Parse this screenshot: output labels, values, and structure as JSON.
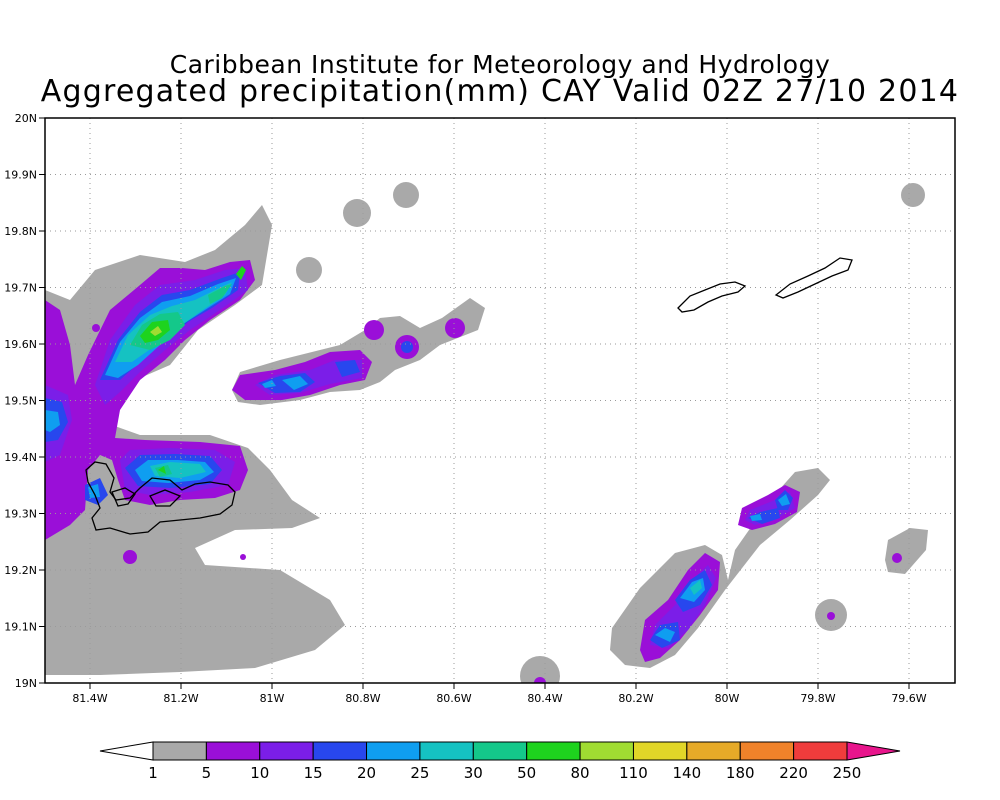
{
  "title": {
    "line1": "Caribbean Institute for Meteorology and Hydrology",
    "line2": "Aggregated precipitation(mm) CAY Valid 02Z 27/10 2014"
  },
  "map": {
    "lon_range": [
      -81.5,
      -79.5
    ],
    "lat_range": [
      19.0,
      20.0
    ],
    "grid": "dotted",
    "lon_ticks": [
      {
        "value": -81.4,
        "label": "81.4W"
      },
      {
        "value": -81.2,
        "label": "81.2W"
      },
      {
        "value": -81.0,
        "label": "81W"
      },
      {
        "value": -80.8,
        "label": "80.8W"
      },
      {
        "value": -80.6,
        "label": "80.6W"
      },
      {
        "value": -80.4,
        "label": "80.4W"
      },
      {
        "value": -80.2,
        "label": "80.2W"
      },
      {
        "value": -80.0,
        "label": "80W"
      },
      {
        "value": -79.8,
        "label": "79.8W"
      },
      {
        "value": -79.6,
        "label": "79.6W"
      }
    ],
    "lat_ticks": [
      {
        "value": 19.0,
        "label": "19N"
      },
      {
        "value": 19.1,
        "label": "19.1N"
      },
      {
        "value": 19.2,
        "label": "19.2N"
      },
      {
        "value": 19.3,
        "label": "19.3N"
      },
      {
        "value": 19.4,
        "label": "19.4N"
      },
      {
        "value": 19.5,
        "label": "19.5N"
      },
      {
        "value": 19.6,
        "label": "19.6N"
      },
      {
        "value": 19.7,
        "label": "19.7N"
      },
      {
        "value": 19.8,
        "label": "19.8N"
      },
      {
        "value": 19.9,
        "label": "19.9N"
      },
      {
        "value": 20.0,
        "label": "20N"
      }
    ]
  },
  "colorbar": {
    "low_color": "#ffffff",
    "high_color": "#e8158c",
    "levels": [
      "1",
      "5",
      "10",
      "15",
      "20",
      "25",
      "30",
      "50",
      "80",
      "110",
      "140",
      "180",
      "220",
      "250"
    ],
    "colors": [
      "#a9a9a9",
      "#9a0fd8",
      "#7b1ee8",
      "#2847ee",
      "#0f9ef0",
      "#15c2c2",
      "#14c88a",
      "#1ed31e",
      "#a0dc32",
      "#e1d628",
      "#e6aa28",
      "#f0822a",
      "#ef3c3c"
    ]
  }
}
